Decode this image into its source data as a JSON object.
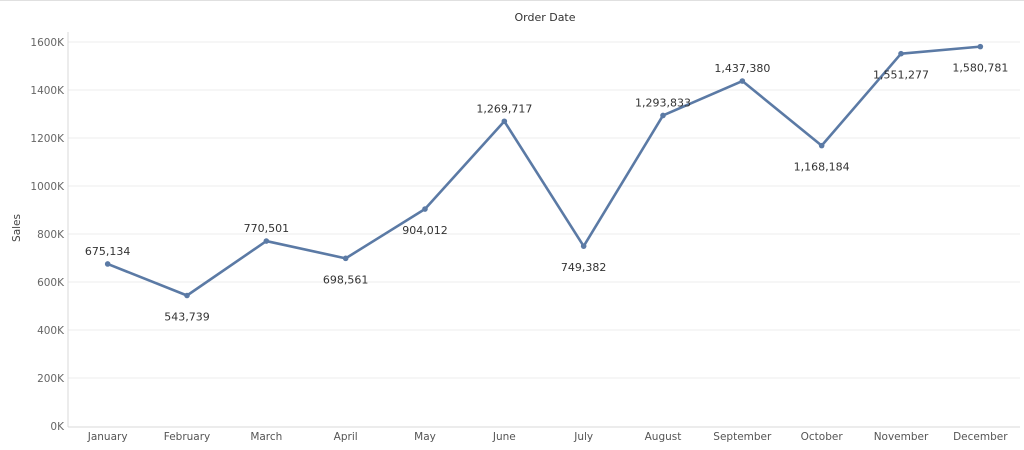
{
  "chart_data": {
    "type": "line",
    "title": "Order Date",
    "xlabel": "",
    "ylabel": "Sales",
    "categories": [
      "January",
      "February",
      "March",
      "April",
      "May",
      "June",
      "July",
      "August",
      "September",
      "October",
      "November",
      "December"
    ],
    "series": [
      {
        "values": [
          675134,
          543739,
          770501,
          698561,
          904012,
          1269717,
          749382,
          1293833,
          1437380,
          1168184,
          1551277,
          1580781
        ],
        "labels": [
          "675,134",
          "543,739",
          "770,501",
          "698,561",
          "904,012",
          "1,269,717",
          "749,382",
          "1,293,833",
          "1,437,380",
          "1,168,184",
          "1,551,277",
          "1,580,781"
        ],
        "label_position": [
          "above",
          "below",
          "above",
          "below",
          "below",
          "above",
          "below",
          "above",
          "above",
          "below",
          "below",
          "below"
        ]
      }
    ],
    "ylim": [
      0,
      1600000
    ],
    "yticks": [
      0,
      200000,
      400000,
      600000,
      800000,
      1000000,
      1200000,
      1400000,
      1600000
    ],
    "ytick_labels": [
      "0K",
      "200K",
      "400K",
      "600K",
      "800K",
      "1000K",
      "1200K",
      "1400K",
      "1600K"
    ],
    "grid": true,
    "colors": {
      "line": "#5b7aa5",
      "grid": "#ececec",
      "axis": "#d8d8d8"
    }
  }
}
